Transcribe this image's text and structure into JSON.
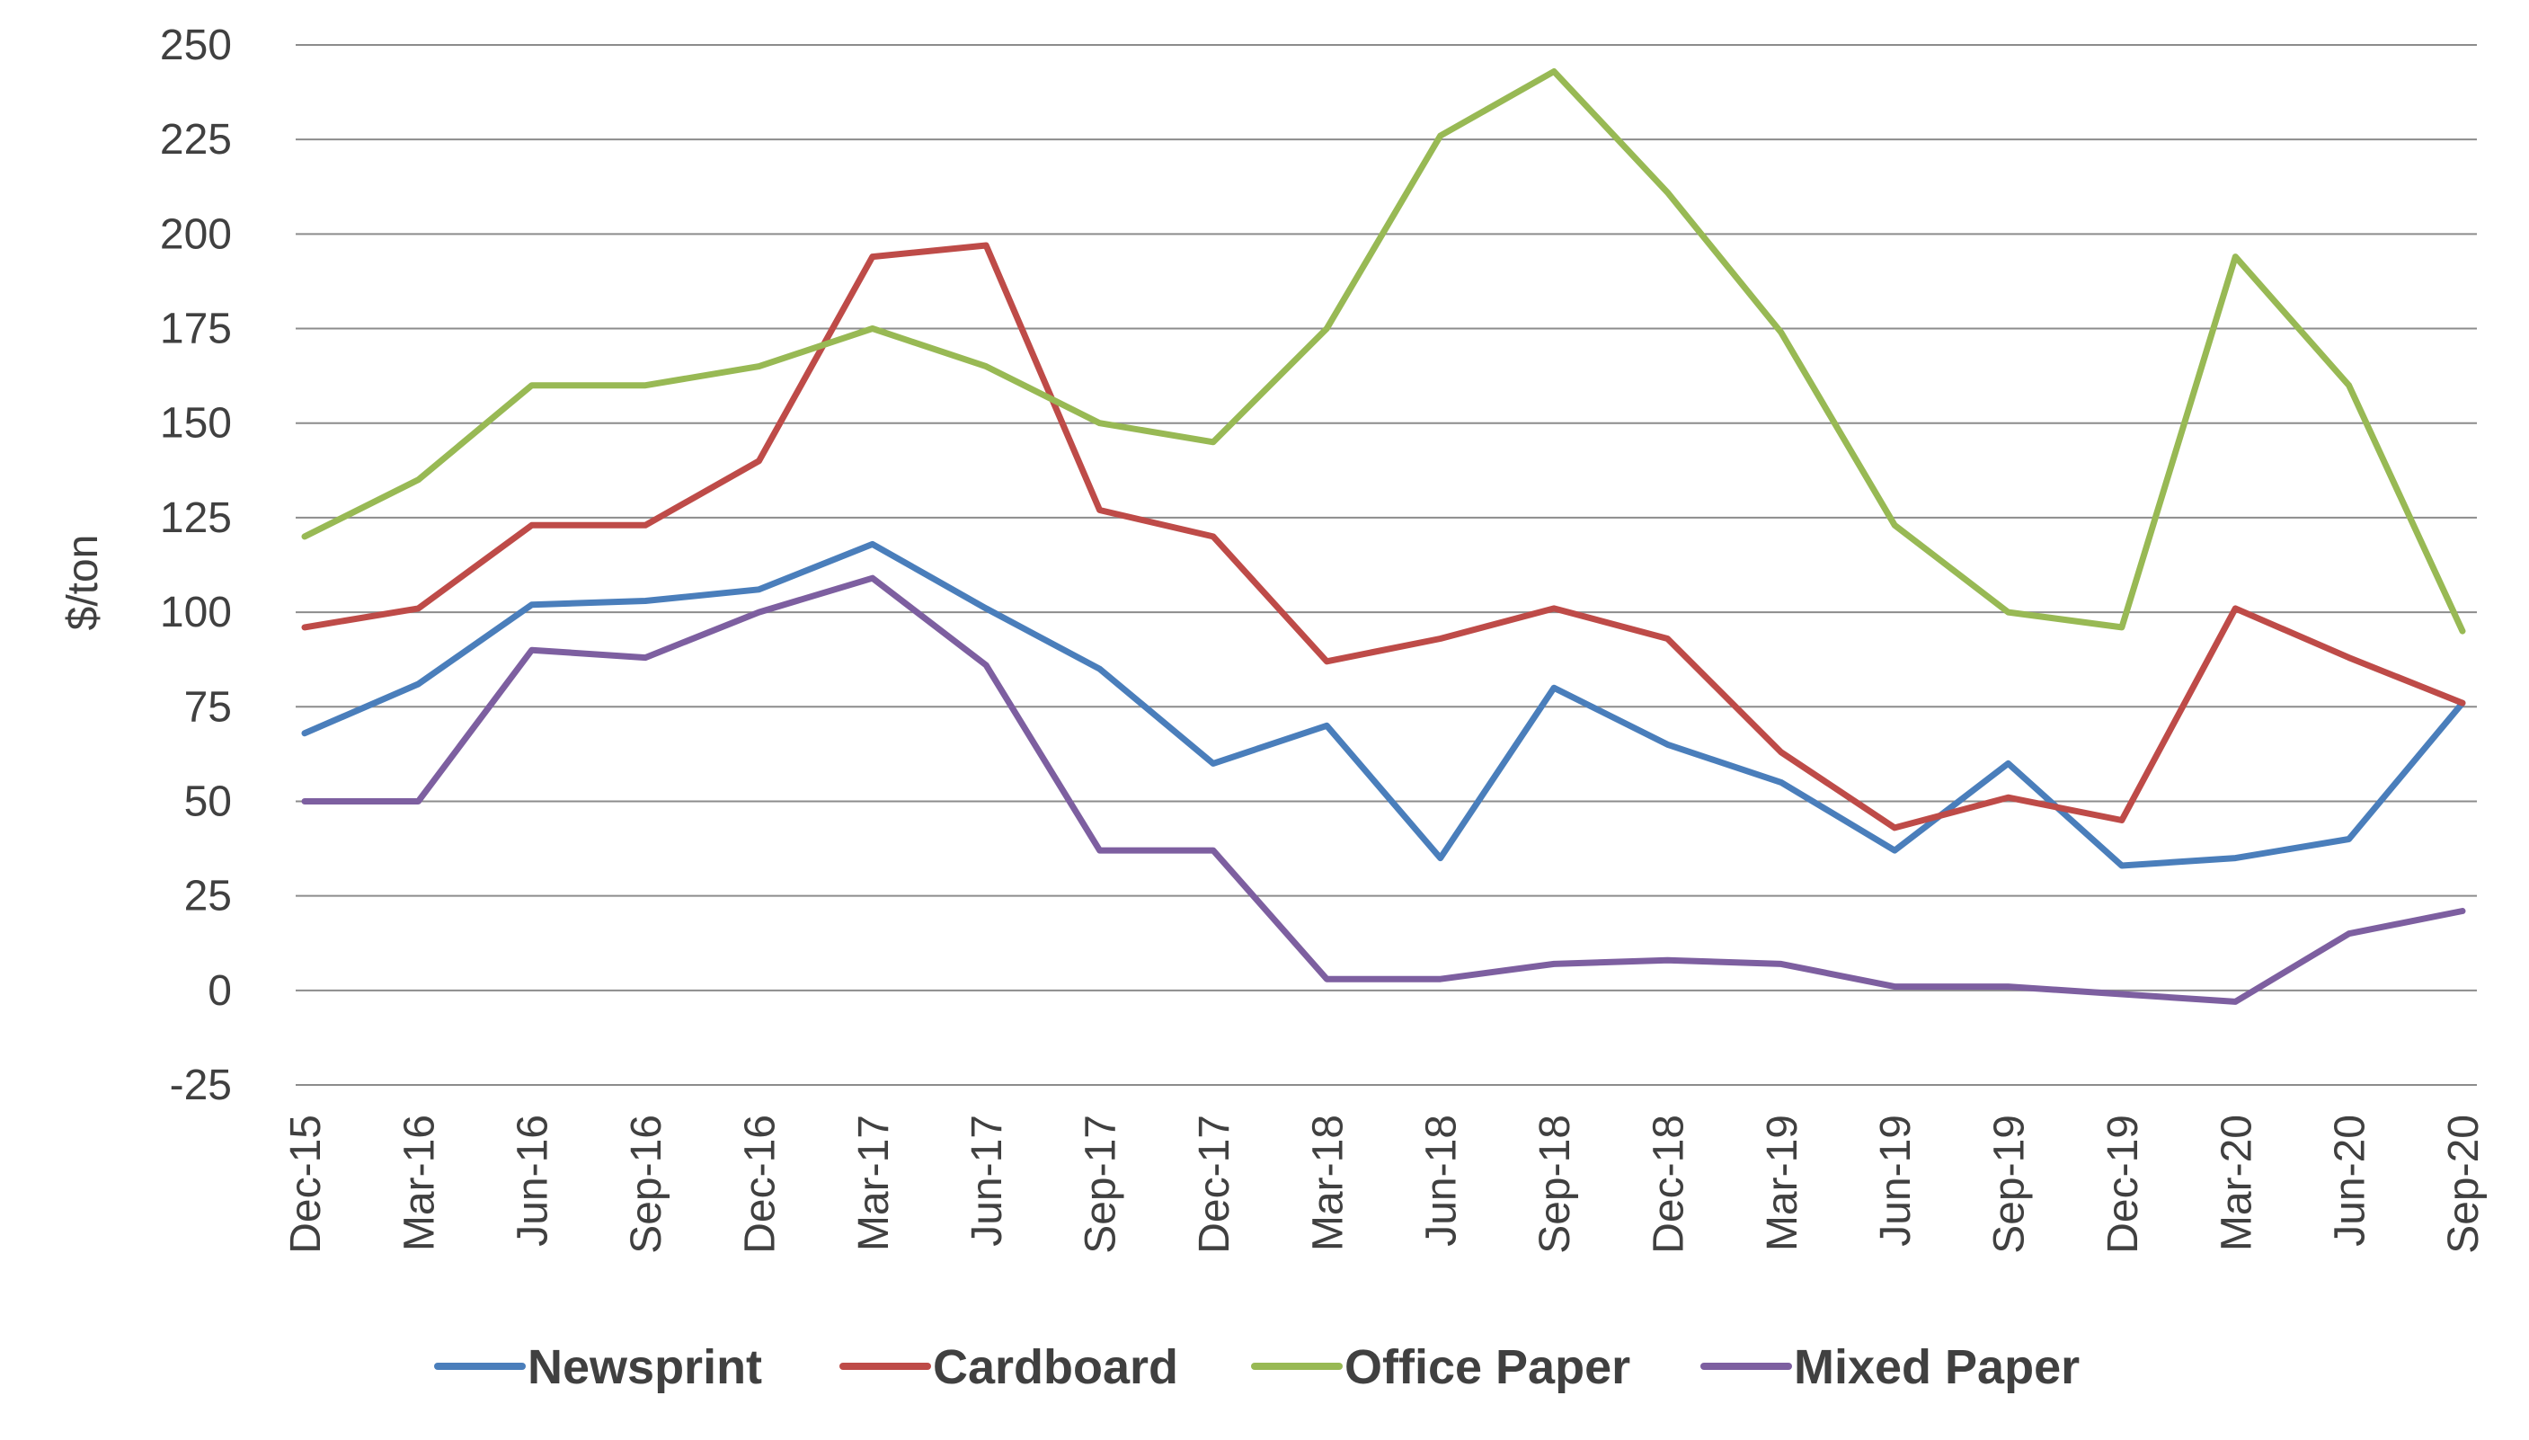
{
  "chart_data": {
    "type": "line",
    "title": "",
    "xlabel": "",
    "ylabel": "$/ton",
    "ylim": [
      -25,
      250
    ],
    "ytick_step": 25,
    "grid": true,
    "legend_position": "bottom",
    "categories": [
      "Dec-15",
      "Mar-16",
      "Jun-16",
      "Sep-16",
      "Dec-16",
      "Mar-17",
      "Jun-17",
      "Sep-17",
      "Dec-17",
      "Mar-18",
      "Jun-18",
      "Sep-18",
      "Dec-18",
      "Mar-19",
      "Jun-19",
      "Sep-19",
      "Dec-19",
      "Mar-20",
      "Jun-20",
      "Sep-20"
    ],
    "series": [
      {
        "name": "Newsprint",
        "color": "#4a7ebb",
        "values": [
          68,
          81,
          102,
          103,
          106,
          118,
          101,
          85,
          60,
          70,
          35,
          80,
          65,
          55,
          37,
          60,
          33,
          35,
          40,
          76
        ]
      },
      {
        "name": "Cardboard",
        "color": "#be4b48",
        "values": [
          96,
          101,
          123,
          123,
          140,
          194,
          197,
          127,
          120,
          87,
          93,
          101,
          93,
          63,
          43,
          51,
          45,
          101,
          88,
          76
        ]
      },
      {
        "name": "Office Paper",
        "color": "#98b954",
        "values": [
          120,
          135,
          160,
          160,
          165,
          175,
          165,
          150,
          145,
          175,
          226,
          243,
          211,
          174,
          123,
          100,
          96,
          194,
          160,
          95
        ]
      },
      {
        "name": "Mixed Paper",
        "color": "#7d5fa0",
        "values": [
          50,
          50,
          90,
          88,
          100,
          109,
          86,
          37,
          37,
          3,
          3,
          7,
          8,
          7,
          1,
          1,
          -1,
          -3,
          15,
          21
        ]
      }
    ]
  }
}
